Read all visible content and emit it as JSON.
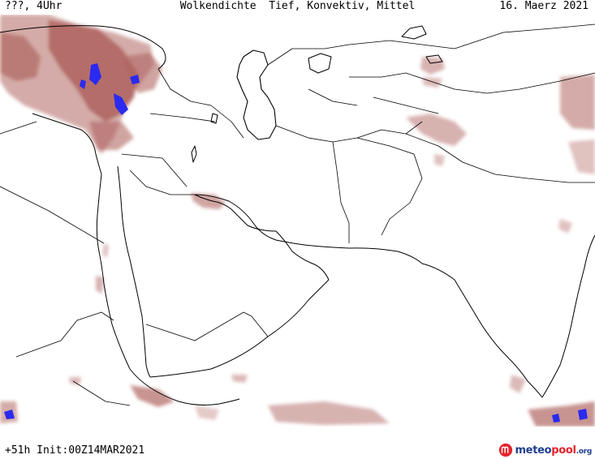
{
  "header": {
    "left": "???, 4Uhr",
    "title": "Wolkendichte  Tief, Konvektiv, Mittel",
    "date": "16. Maerz 2021"
  },
  "footer": {
    "forecast_info": "+51h Init:00Z14MAR2021"
  },
  "logo": {
    "meteo": "meteo",
    "pool": "pool",
    "tld": ".org"
  },
  "colors": {
    "cloud_fill": "#a24b46",
    "cloud_edge": "#c98e8c",
    "convective": "#2a2af0",
    "borders": "#000000",
    "logo_blue": "#1f3f8f",
    "logo_red": "#e3232b"
  }
}
